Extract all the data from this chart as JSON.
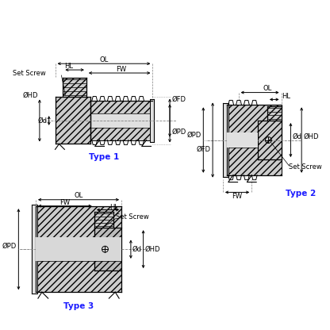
{
  "bg_color": "#ffffff",
  "line_color": "#000000",
  "type_color": "#1a1aff",
  "hatch_fc": "#cccccc",
  "bore_fc": "#e8e8e8",
  "type1_label": "Type 1",
  "type2_label": "Type 2",
  "type3_label": "Type 3",
  "fs": 6.0,
  "fs_type": 7.5
}
